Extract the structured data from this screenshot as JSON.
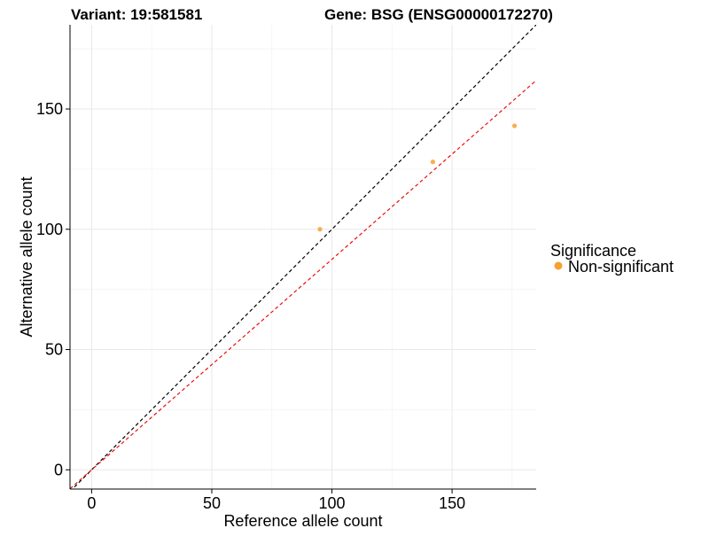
{
  "chart_data": {
    "type": "scatter",
    "title_left": "Variant: 19:581581",
    "title_right": "Gene: BSG (ENSG00000172270)",
    "xlabel": "Reference allele count",
    "ylabel": "Alternative allele count",
    "xlim": [
      -9,
      185
    ],
    "ylim": [
      -8,
      185
    ],
    "x_ticks": [
      0,
      50,
      100,
      150
    ],
    "y_ticks": [
      0,
      50,
      100,
      150
    ],
    "grid": true,
    "legend": {
      "title": "Significance",
      "position": "right",
      "items": [
        {
          "label": "Non-significant",
          "color": "#F7A030"
        }
      ]
    },
    "series": [
      {
        "name": "Non-significant",
        "color": "#F7A030",
        "points": [
          {
            "x": 95,
            "y": 100
          },
          {
            "x": 142,
            "y": 128
          },
          {
            "x": 176,
            "y": 143
          }
        ]
      }
    ],
    "reference_lines": [
      {
        "slope": 1.0,
        "intercept": 0,
        "color": "#000000",
        "style": "dashed"
      },
      {
        "slope": 0.875,
        "intercept": 0,
        "color": "#E8120C",
        "style": "dashed"
      }
    ]
  }
}
